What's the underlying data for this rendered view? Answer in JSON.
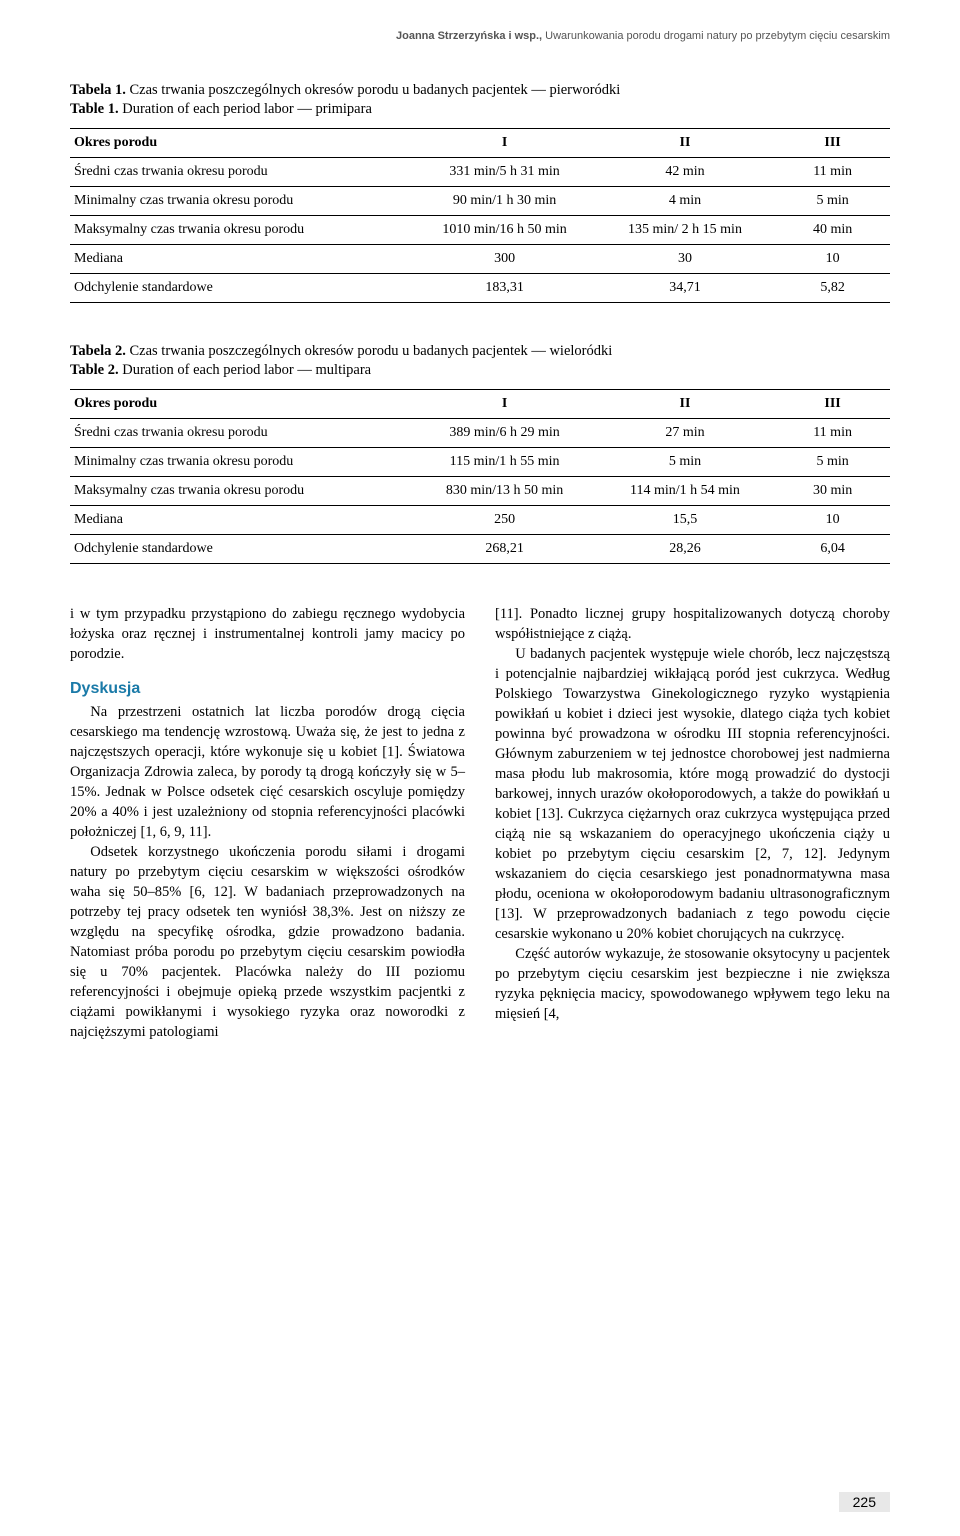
{
  "running_header": {
    "authors": "Joanna Strzerzyńska i wsp., ",
    "title": "Uwarunkowania porodu drogami natury po przebytym cięciu cesarskim"
  },
  "table1": {
    "title_pl_num": "Tabela 1.",
    "title_pl_rest": " Czas trwania poszczególnych okresów porodu u badanych pacjentek — pierworódki",
    "title_en_num": "Table 1.",
    "title_en_rest": " Duration of each period labor — primipara",
    "header": [
      "Okres porodu",
      "I",
      "II",
      "III"
    ],
    "rows": [
      [
        "Średni czas trwania okresu porodu",
        "331 min/5 h 31 min",
        "42 min",
        "11 min"
      ],
      [
        "Minimalny czas trwania okresu porodu",
        "90 min/1 h 30 min",
        "4 min",
        "5 min"
      ],
      [
        "Maksymalny czas trwania okresu porodu",
        "1010 min/16 h 50 min",
        "135 min/ 2 h 15 min",
        "40 min"
      ],
      [
        "Mediana",
        "300",
        "30",
        "10"
      ],
      [
        "Odchylenie standardowe",
        "183,31",
        "34,71",
        "5,82"
      ]
    ]
  },
  "table2": {
    "title_pl_num": "Tabela 2.",
    "title_pl_rest": " Czas trwania poszczególnych okresów porodu u badanych pacjentek — wieloródki",
    "title_en_num": "Table 2.",
    "title_en_rest": " Duration of each period labor — multipara",
    "header": [
      "Okres porodu",
      "I",
      "II",
      "III"
    ],
    "rows": [
      [
        "Średni czas trwania okresu porodu",
        "389 min/6 h 29 min",
        "27 min",
        "11 min"
      ],
      [
        "Minimalny czas trwania okresu porodu",
        "115 min/1 h 55 min",
        "5 min",
        "5 min"
      ],
      [
        "Maksymalny czas trwania okresu porodu",
        "830 min/13 h 50 min",
        "114 min/1 h 54 min",
        "30 min"
      ],
      [
        "Mediana",
        "250",
        "15,5",
        "10"
      ],
      [
        "Odchylenie standardowe",
        "268,21",
        "28,26",
        "6,04"
      ]
    ]
  },
  "body": {
    "left": {
      "p1": "i w tym przypadku przystąpiono do zabiegu ręcznego wydobycia łożyska oraz ręcznej i instrumentalnej kontroli jamy macicy po porodzie.",
      "section_head": "Dyskusja",
      "p2": "Na przestrzeni ostatnich lat liczba porodów drogą cięcia cesarskiego ma tendencję wzrostową. Uważa się, że jest to jedna z najczęstszych operacji, które wykonuje się u kobiet [1]. Światowa Organizacja Zdrowia zaleca, by porody tą drogą kończyły się w 5–15%. Jednak w Polsce odsetek cięć cesarskich oscyluje pomiędzy 20% a 40% i jest uzależniony od stopnia referencyjności placówki położniczej [1, 6, 9, 11].",
      "p3": "Odsetek korzystnego ukończenia porodu siłami i drogami natury po przebytym cięciu cesarskim w większości ośrodków waha się 50–85% [6, 12]. W badaniach przeprowadzonych na potrzeby tej pracy odsetek ten wyniósł 38,3%. Jest on niższy ze względu na specyfikę ośrodka, gdzie prowadzono badania. Natomiast próba porodu po przebytym cięciu cesarskim powiodła się u 70% pacjentek. Placówka należy do III poziomu referencyjności i obejmuje opieką przede wszystkim pacjentki z ciążami powikłanymi i wysokiego ryzyka oraz noworodki z najcięższymi patologiami"
    },
    "right": {
      "p1": "[11]. Ponadto licznej grupy hospitalizowanych dotyczą choroby współistniejące z ciążą.",
      "p2": "U badanych pacjentek występuje wiele chorób, lecz najczęstszą i potencjalnie najbardziej wikłającą poród jest cukrzyca. Według Polskiego Towarzystwa Ginekologicznego ryzyko wystąpienia powikłań u kobiet i dzieci jest wysokie, dlatego ciąża tych kobiet powinna być prowadzona w ośrodku III stopnia referencyjności. Głównym zaburzeniem w tej jednostce chorobowej jest nadmierna masa płodu lub makrosomia, które mogą prowadzić do dystocji barkowej, innych urazów okołoporodowych, a także do powikłań u kobiet [13]. Cukrzyca ciężarnych oraz cukrzyca występująca przed ciążą nie są wskazaniem do operacyjnego ukończenia ciąży u kobiet po przebytym cięciu cesarskim [2, 7, 12]. Jedynym wskazaniem do cięcia cesarskiego jest ponadnormatywna masa płodu, oceniona w okołoporodowym badaniu ultrasonograficznym [13]. W przeprowadzonych badaniach z tego powodu cięcie cesarskie wykonano u 20% kobiet chorujących na cukrzycę.",
      "p3": "Część autorów wykazuje, że stosowanie oksytocyny u pacjentek po przebytym cięciu cesarskim jest bezpieczne i nie zwiększa ryzyka pęknięcia macicy, spowodowanego wpływem tego leku na mięsień [4,"
    }
  },
  "page_number": "225"
}
